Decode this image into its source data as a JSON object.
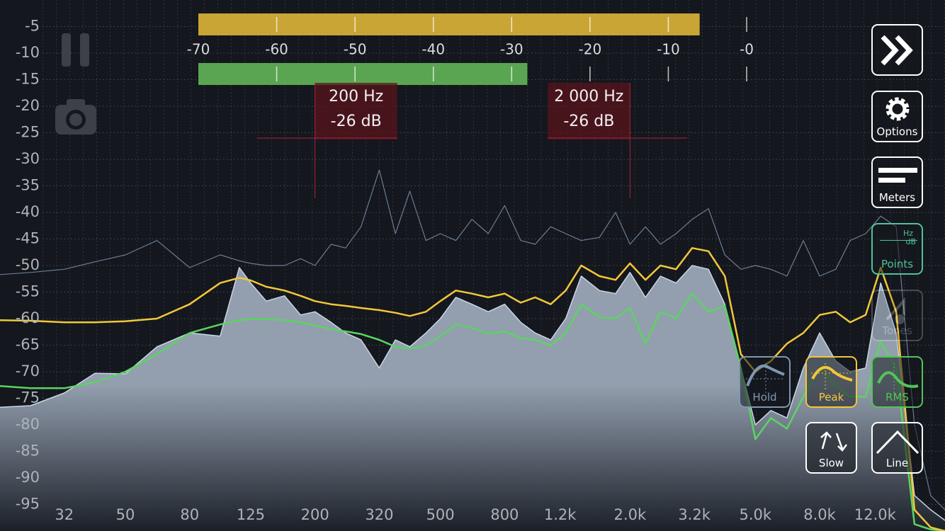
{
  "chart_data": [
    {
      "type": "line",
      "xlog": true,
      "grid": true,
      "xlim": [
        20,
        20000
      ],
      "ylim": [
        -100,
        0
      ],
      "xticks": [
        32,
        50,
        80,
        125,
        200,
        320,
        500,
        800,
        {
          "value": 1200,
          "label": "1.2k"
        },
        {
          "value": 2000,
          "label": "2.0k"
        },
        {
          "value": 3200,
          "label": "3.2k"
        },
        {
          "value": 5000,
          "label": "5.0k"
        },
        {
          "value": 8000,
          "label": "8.0k"
        },
        {
          "value": 12000,
          "label": "12.0k"
        }
      ],
      "yticks": [
        -5,
        -10,
        -15,
        -20,
        -25,
        -30,
        -35,
        -40,
        -45,
        -50,
        -55,
        -60,
        -65,
        -70,
        -75,
        -80,
        -85,
        -90,
        -95
      ],
      "x": [
        20,
        25,
        32,
        40,
        50,
        63,
        80,
        100,
        115,
        125,
        140,
        160,
        180,
        200,
        225,
        250,
        280,
        320,
        360,
        400,
        450,
        500,
        560,
        630,
        710,
        800,
        900,
        1000,
        1120,
        1250,
        1400,
        1600,
        1800,
        2000,
        2240,
        2500,
        2800,
        3150,
        3550,
        4000,
        4500,
        5000,
        5600,
        6300,
        7100,
        8000,
        9000,
        10000,
        11200,
        12500,
        14000,
        16000,
        18000,
        20000
      ],
      "series": [
        {
          "color": "#c9d6e6",
          "fill": true,
          "values": [
            -76.7,
            -76.4,
            -74,
            -70.3,
            -70.4,
            -65.3,
            -62.7,
            -63.3,
            -50.4,
            -53.3,
            -56.7,
            -55.7,
            -59.3,
            -58.7,
            -60.7,
            -62.7,
            -64,
            -69.3,
            -64,
            -65.3,
            -62.7,
            -60,
            -56,
            -57.3,
            -58.7,
            -57.3,
            -60.7,
            -62.7,
            -64,
            -60,
            -52,
            -54.7,
            -55.3,
            -51.3,
            -56,
            -52,
            -53.3,
            -50,
            -50.7,
            -57.3,
            -69.3,
            -80,
            -77.3,
            -78.7,
            -69.3,
            -62.7,
            -68,
            -70,
            -69.3,
            -53.3,
            -62.7,
            -93.3,
            -96,
            -98
          ]
        },
        {
          "name": "Hold",
          "color": "#7f97b3",
          "values": [
            -51.7,
            -51.3,
            -50.7,
            -49.3,
            -48,
            -45.3,
            -50.4,
            -48,
            -49.1,
            -49.6,
            -50,
            -50,
            -48.7,
            -50,
            -46,
            -46.7,
            -42.7,
            -32,
            -44,
            -36,
            -45.3,
            -44,
            -45.3,
            -41.3,
            -44,
            -38.7,
            -45.3,
            -46,
            -42.7,
            -44,
            -45.3,
            -44.7,
            -40,
            -46,
            -42.7,
            -46,
            -44,
            -41.3,
            -39.3,
            -48,
            -50.7,
            -50,
            -50.7,
            -52,
            -45.3,
            -52,
            -50.7,
            -45.3,
            -44,
            -40.7,
            -42.7,
            -80,
            -93.3,
            -96
          ]
        },
        {
          "name": "Peak",
          "color": "#f2c73a",
          "values": [
            -60.3,
            -60.4,
            -60.7,
            -60.7,
            -60.5,
            -60,
            -57.3,
            -53.3,
            -52.3,
            -52.8,
            -54,
            -54.7,
            -55.7,
            -56.7,
            -57.3,
            -57.6,
            -58,
            -58.4,
            -58.9,
            -59.5,
            -58.7,
            -56.7,
            -54.7,
            -55.3,
            -56,
            -55.3,
            -57,
            -56,
            -57.3,
            -54.7,
            -50,
            -52,
            -52.7,
            -49.6,
            -52.7,
            -50,
            -50.7,
            -46.7,
            -47.3,
            -52,
            -66.7,
            -70,
            -68,
            -64.7,
            -62.7,
            -59.3,
            -58.7,
            -60.7,
            -59.3,
            -50.4,
            -58.7,
            -96,
            -99.3,
            -100
          ]
        },
        {
          "name": "RMS",
          "color": "#5bd462",
          "values": [
            -72.7,
            -73.1,
            -73.1,
            -72,
            -70,
            -66.7,
            -62.7,
            -61.1,
            -60.3,
            -60.1,
            -60.1,
            -60.3,
            -60.7,
            -61.3,
            -62,
            -62.4,
            -62.9,
            -64,
            -65.3,
            -65.6,
            -65.1,
            -63.3,
            -61.1,
            -61.7,
            -62.9,
            -62.4,
            -63.7,
            -64,
            -65.1,
            -62.7,
            -57.3,
            -59.7,
            -60,
            -58,
            -64.7,
            -58.7,
            -60,
            -55.3,
            -58.7,
            -57.6,
            -69.3,
            -82.7,
            -78.7,
            -80.7,
            -74.7,
            -69.3,
            -72.7,
            -74.7,
            -74.7,
            -64.3,
            -69.3,
            -98.7,
            -99.7,
            -100
          ]
        }
      ],
      "annotations": [
        {
          "text": [
            "200 Hz",
            "-26 dB"
          ],
          "x": 200,
          "y": -26
        },
        {
          "text": [
            "2 000 Hz",
            "-26 dB"
          ],
          "x": 2000,
          "y": -26
        }
      ]
    },
    {
      "type": "bar",
      "orientation": "horizontal",
      "xlim": [
        -70,
        0
      ],
      "xticks": [
        -70,
        -60,
        -50,
        -40,
        -30,
        -20,
        -10,
        {
          "value": 0,
          "label": "-0"
        }
      ],
      "series": [
        {
          "color": "#c9a536",
          "values": [
            -6
          ]
        },
        {
          "color": "#5aa552",
          "values": [
            -28
          ]
        }
      ]
    }
  ],
  "toolbar": {
    "options": "Options",
    "meters": "Meters",
    "points": "Points",
    "points_hz": "Hz",
    "points_db": "dB",
    "tones": "Tones",
    "slow": "Slow",
    "line": "Line"
  }
}
